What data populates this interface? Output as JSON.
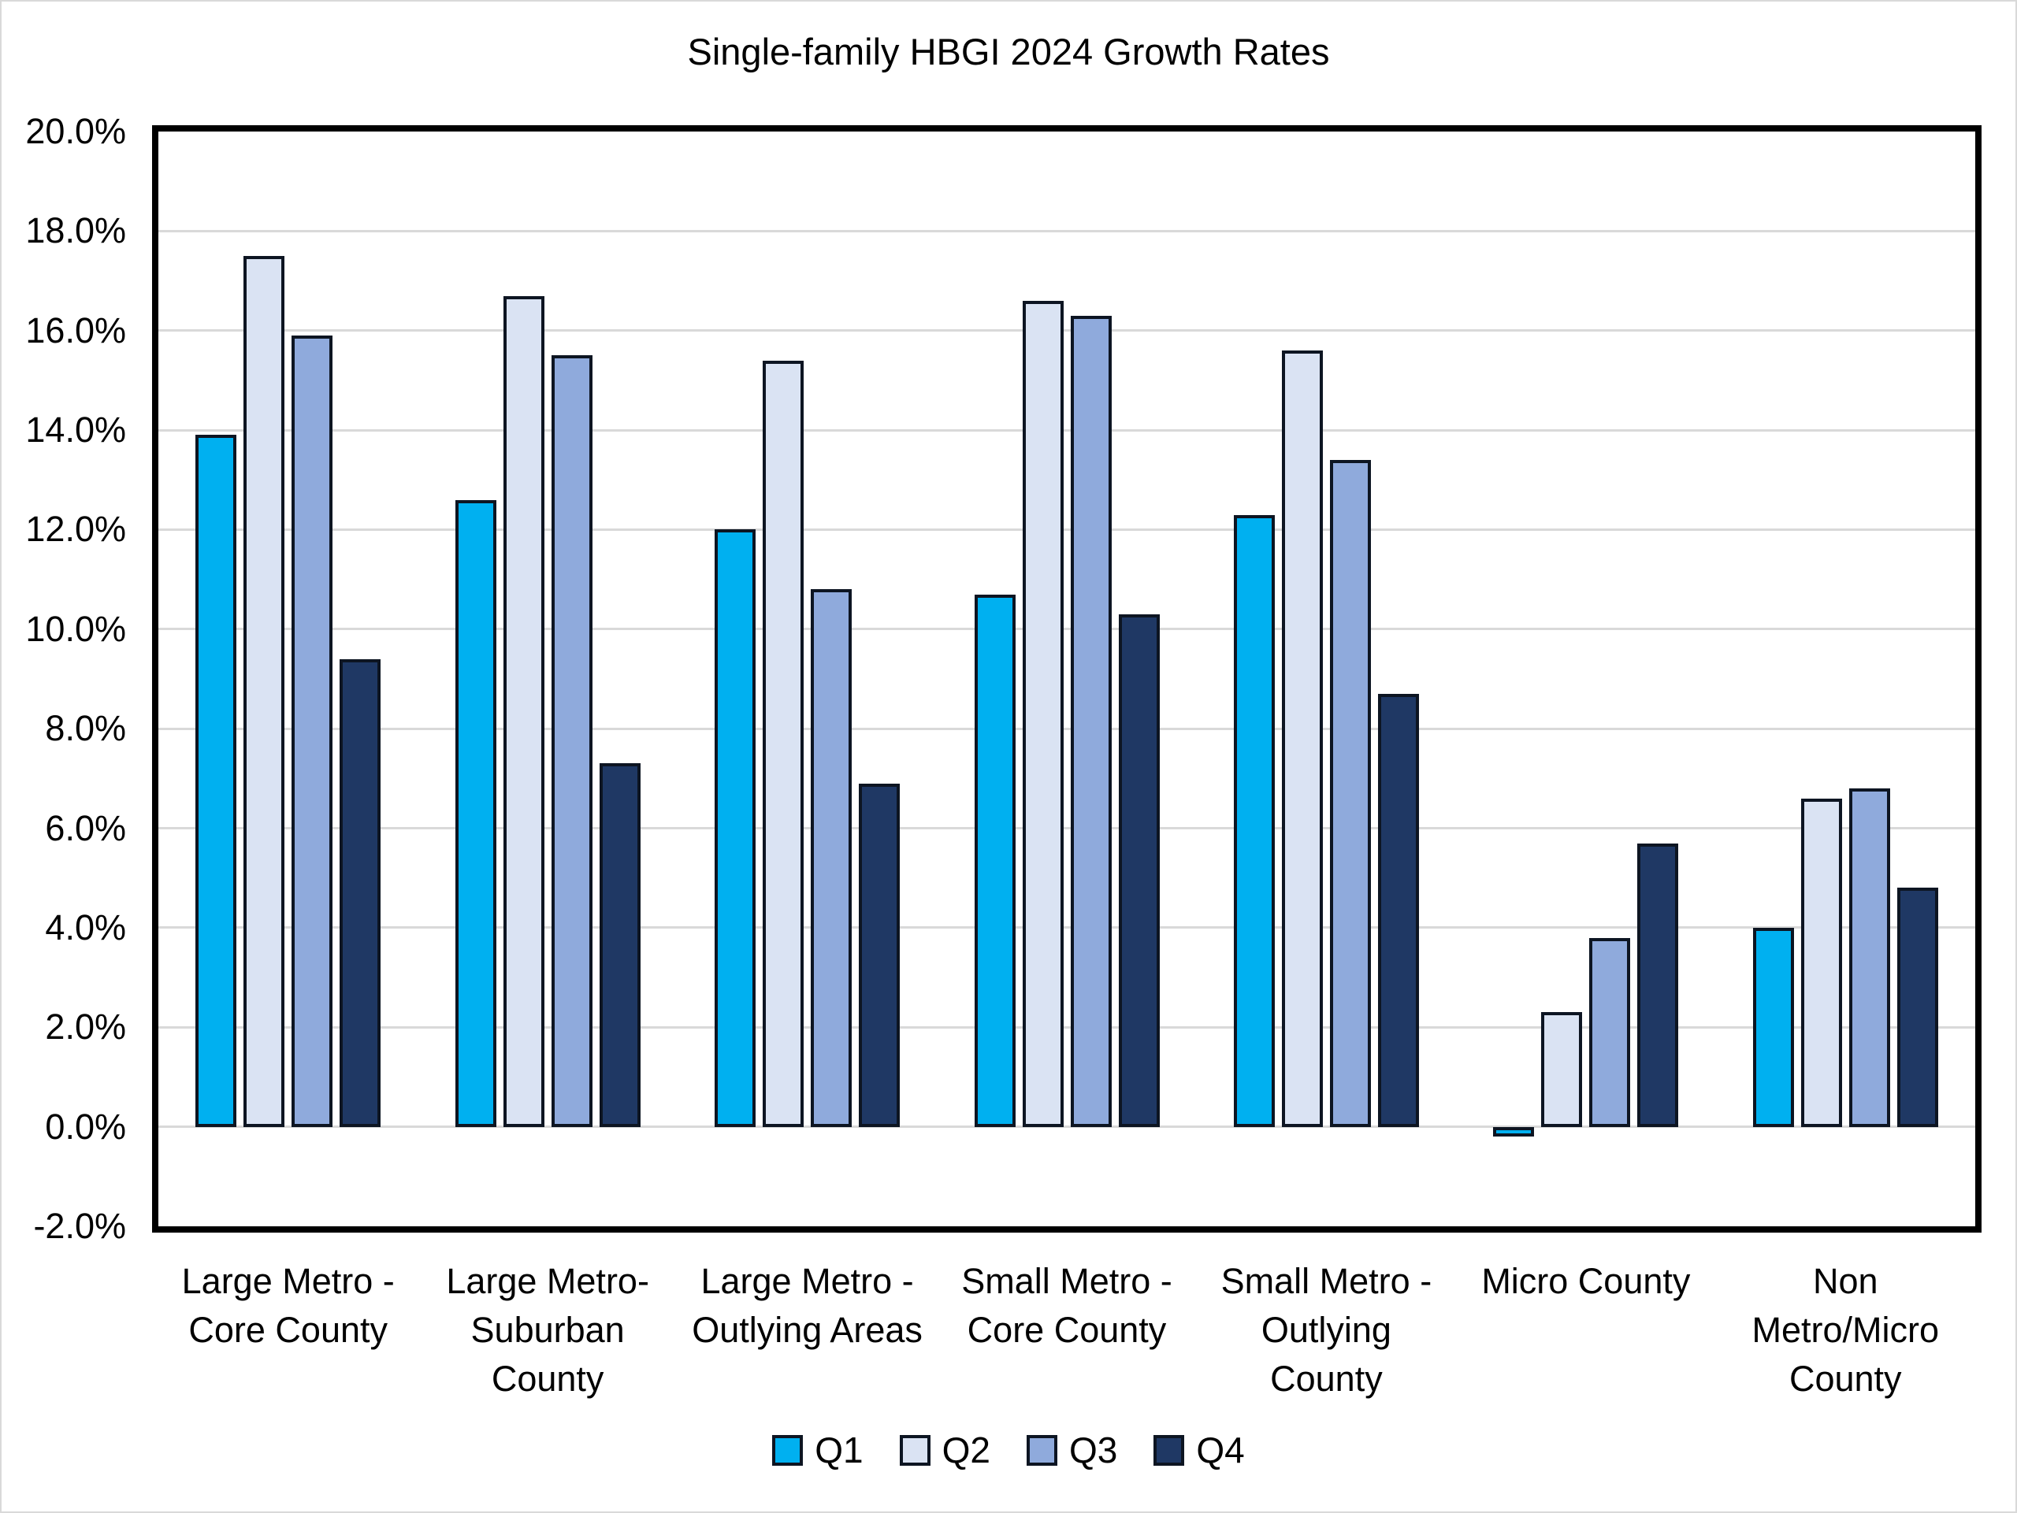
{
  "frame": {
    "background": "#ffffff",
    "border_color": "#d9d9d9"
  },
  "chart_data": {
    "type": "bar",
    "title": "Single-family HBGI 2024 Growth Rates",
    "categories": [
      "Large Metro -\nCore County",
      "Large Metro-\nSuburban\nCounty",
      "Large Metro -\nOutlying Areas",
      "Small Metro -\nCore County",
      "Small Metro -\nOutlying\nCounty",
      "Micro County",
      "Non\nMetro/Micro\nCounty"
    ],
    "series": [
      {
        "name": "Q1",
        "color": "#00B0F0",
        "values": [
          13.9,
          12.6,
          12.0,
          10.7,
          12.3,
          -0.2,
          4.0
        ]
      },
      {
        "name": "Q2",
        "color": "#DAE3F3",
        "values": [
          17.5,
          16.7,
          15.4,
          16.6,
          15.6,
          2.3,
          6.6
        ]
      },
      {
        "name": "Q3",
        "color": "#8FAADC",
        "values": [
          15.9,
          15.5,
          10.8,
          16.3,
          13.4,
          3.8,
          6.8
        ]
      },
      {
        "name": "Q4",
        "color": "#1F3864",
        "values": [
          9.4,
          7.3,
          6.9,
          10.3,
          8.7,
          5.7,
          4.8
        ]
      }
    ],
    "ylim": [
      -2,
      20
    ],
    "ytick_step": 2,
    "ytick_labels": [
      "20.0%",
      "18.0%",
      "16.0%",
      "14.0%",
      "12.0%",
      "10.0%",
      "8.0%",
      "6.0%",
      "4.0%",
      "2.0%",
      "0.0%",
      "-2.0%"
    ],
    "grid": true,
    "gridline_color": "#d9d9d9",
    "plot_border_color": "#000000",
    "bar_outline_color": "#0d1522",
    "legend_position": "bottom",
    "legend_entries": [
      "Q1",
      "Q2",
      "Q3",
      "Q4"
    ]
  }
}
